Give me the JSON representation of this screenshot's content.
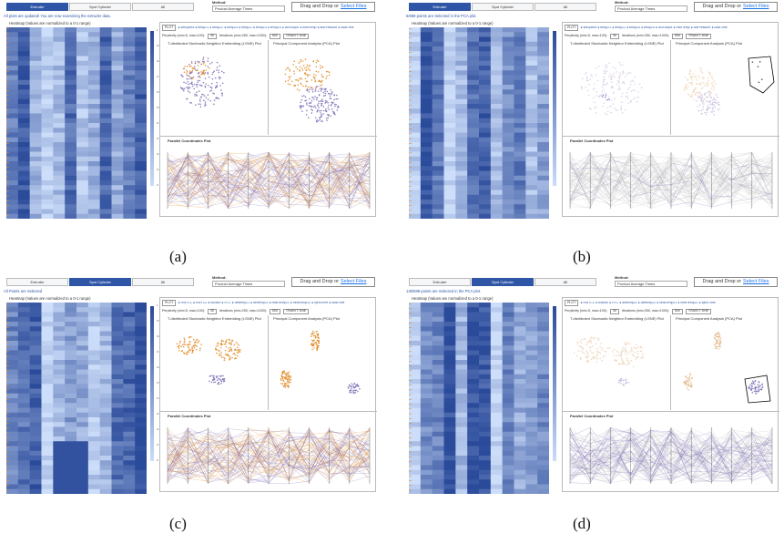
{
  "captions": [
    "(a)",
    "(b)",
    "(c)",
    "(d)"
  ],
  "colors": {
    "accent": "#2f56a6",
    "cluster_purple": "#7a6bb5",
    "cluster_orange": "#e08a25",
    "muted_gray": "#aaaaaa",
    "heat_dark": "#2a4a9a",
    "heat_light": "#c9dcfa"
  },
  "shared": {
    "method_label": "Method:",
    "method_value": "Product Average Times",
    "drop_text": "Drag and Drop or",
    "drop_link": "Select Files",
    "heatmap_title": "Heatmap (Values are normalized to a 0-1 range)",
    "plot_button": "PLOT",
    "perplexity_label": "Perplexity (min=5, max=100):",
    "perplexity_value": "30",
    "iterations_label": "Iterations (min=250, max=1000):",
    "iterations_value": "500",
    "train_button": "TRAIN T-SNE",
    "tsne_title": "T-distributed Stochastic Neighbor Embedding (t-SNE) Plot",
    "pca_title": "Principal Component Analysis (PCA) Plot",
    "pcp_title": "Parallel Coordinates Plot"
  },
  "panels": [
    {
      "tabs": [
        "Extruder",
        "Spot Cylinder",
        "All"
      ],
      "active_tab": 0,
      "status": "All plots are updated! You are now examining the extruder data.",
      "legend": "● setSpeed ● tempZ1 ● tempZ2 ● tempZ4 ● tempZ1 ● tempZ4 ● tempZ4 ● actTorque ● meltTemp ● actPressure ● totalTime",
      "colorbar_ticks": [
        "1",
        "0.9",
        "0.8",
        "0.7",
        "0.6",
        "0.5",
        "0.4",
        "0.3",
        "0.2",
        "0.1",
        "0"
      ]
    },
    {
      "tabs": [
        "Extruder",
        "Spot Cylinder",
        "All"
      ],
      "active_tab": 0,
      "status": "5/689 points are Selected in the PCA plot.",
      "legend": "● setSpeed ● tempZ1 ● tempZ2 ● tempZ4 ● tempZ4 ● actTorque ● meltTemp ● actPressure ● totalTime",
      "colorbar_ticks": []
    },
    {
      "tabs": [
        "Extruder",
        "Spot Cylinder",
        "All"
      ],
      "active_tab": 1,
      "status": "All Points are Selected",
      "legend": "● RWTC1 ● RWTC2 ● suction ● RTC ● deflemp21 ● deflemp22 ● heatTemp21 ● heatTemp22 ● ejectTime ● totalTime",
      "colorbar_ticks": [
        "1",
        "0.9",
        "0.8",
        "0.7",
        "0.6",
        "0.5",
        "0.4",
        "0.3",
        "0.2",
        "0.1",
        "0"
      ]
    },
    {
      "tabs": [
        "Extruder",
        "Spot Cylinder",
        "All"
      ],
      "active_tab": 1,
      "status": "136/689 points are Selected in the PCA plot.",
      "legend": "● RWTC1 ● suction ● RTC ● deflemp21 ● deflemp22 ● heatTemp21 ● heatTemp22 ● ejectTime",
      "colorbar_ticks": []
    }
  ]
}
